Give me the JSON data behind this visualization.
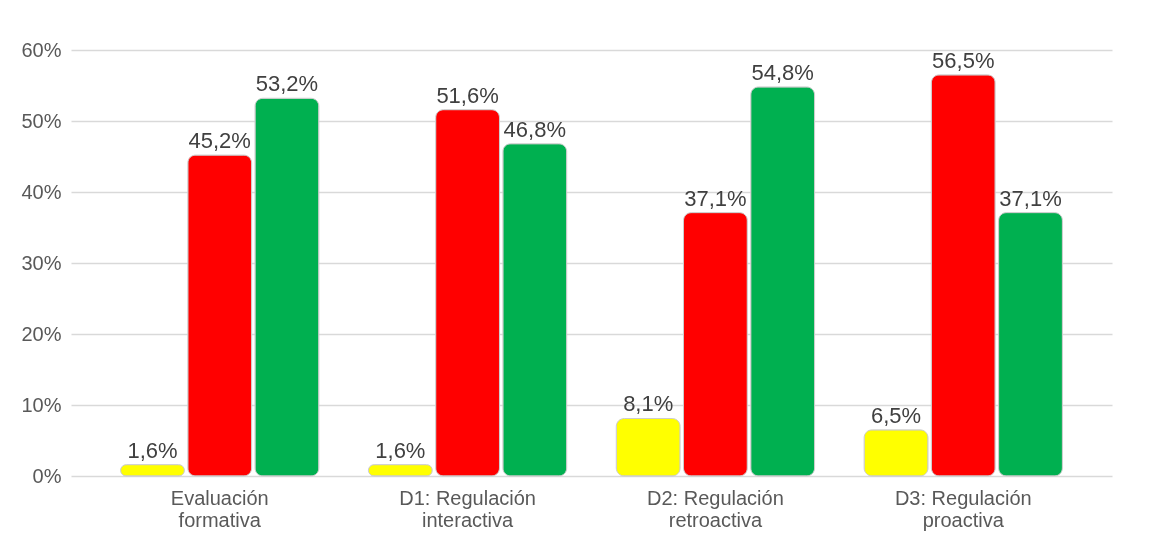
{
  "chart_data": {
    "type": "bar",
    "categories": [
      "Evaluación formativa",
      "D1: Regulación interactiva",
      "D2: Regulación retroactiva",
      "D3: Regulación proactiva"
    ],
    "series": [
      {
        "color": "#ffff00",
        "values": [
          1.6,
          1.6,
          8.1,
          6.5
        ],
        "value_labels": [
          "1,6%",
          "1,6%",
          "8,1%",
          "6,5%"
        ]
      },
      {
        "color": "#ff0000",
        "values": [
          45.2,
          51.6,
          37.1,
          56.5
        ],
        "value_labels": [
          "45,2%",
          "51,6%",
          "37,1%",
          "56,5%"
        ]
      },
      {
        "color": "#00b050",
        "values": [
          53.2,
          46.8,
          54.8,
          37.1
        ],
        "value_labels": [
          "53,2%",
          "46,8%",
          "54,8%",
          "37,1%"
        ]
      }
    ],
    "ylim": [
      0,
      60
    ],
    "yticks": [
      {
        "value": 0,
        "label": "0%"
      },
      {
        "value": 10,
        "label": "10%"
      },
      {
        "value": 20,
        "label": "20%"
      },
      {
        "value": 30,
        "label": "30%"
      },
      {
        "value": 40,
        "label": "40%"
      },
      {
        "value": 50,
        "label": "50%"
      },
      {
        "value": 60,
        "label": "60%"
      }
    ],
    "grid": "y",
    "legend": false
  }
}
